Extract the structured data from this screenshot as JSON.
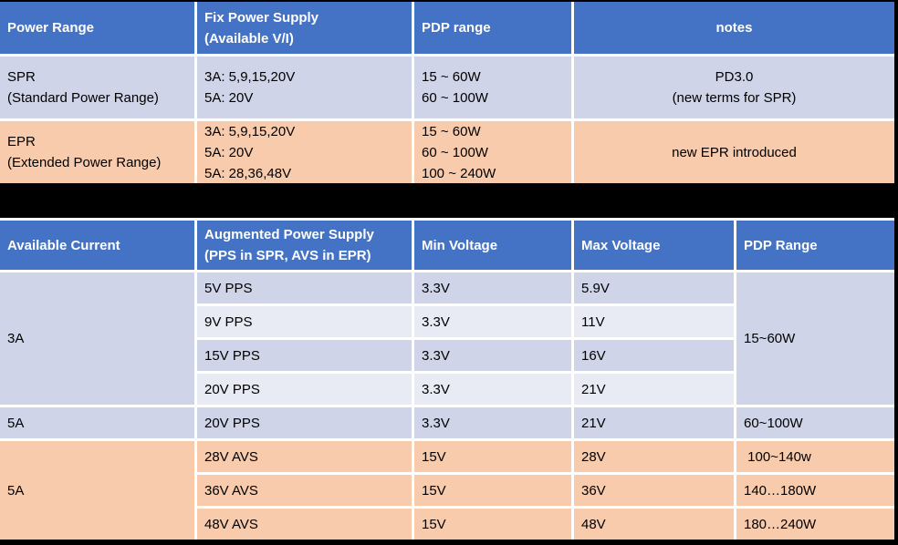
{
  "colors": {
    "header_blue": "#4472C4",
    "band_dark": "#CFD4E8",
    "band_light": "#E8EAF4",
    "peach": "#F8CBAD",
    "background": "#000000",
    "grid_white": "#FFFFFF"
  },
  "power_range_table": {
    "headers": {
      "power_range": "Power Range",
      "fix_power_supply": [
        "Fix Power Supply",
        "(Available V/I)"
      ],
      "pdp_range": "PDP range",
      "notes": "notes"
    },
    "spr_row": {
      "name": [
        "SPR",
        "(Standard Power Range)"
      ],
      "supply": [
        "3A: 5,9,15,20V",
        "5A: 20V"
      ],
      "pdp": [
        "15 ~ 60W",
        "60 ~ 100W"
      ],
      "notes": [
        "PD3.0",
        "(new terms for SPR)"
      ]
    },
    "epr_row": {
      "name": [
        "EPR",
        "(Extended Power Range)"
      ],
      "supply": [
        "3A: 5,9,15,20V",
        "5A: 20V",
        "5A: 28,36,48V"
      ],
      "pdp": [
        "15 ~ 60W",
        "60 ~ 100W",
        "100 ~ 240W"
      ],
      "notes": [
        "new EPR introduced"
      ]
    }
  },
  "augmented_table": {
    "headers": {
      "available_current": "Available Current",
      "augmented_power_supply": [
        "Augmented Power Supply",
        "(PPS in SPR, AVS in EPR)"
      ],
      "min_voltage": "Min Voltage",
      "max_voltage": "Max Voltage",
      "pdp_range": "PDP Range"
    },
    "current_3a": "3A",
    "pdp_15_60": "15~60W",
    "pps_rows": [
      {
        "supply": "5V PPS",
        "min": "3.3V",
        "max": "5.9V"
      },
      {
        "supply": "9V PPS",
        "min": "3.3V",
        "max": "11V"
      },
      {
        "supply": "15V PPS",
        "min": "3.3V",
        "max": "16V"
      },
      {
        "supply": "20V PPS",
        "min": "3.3V",
        "max": "21V"
      }
    ],
    "row_5a_pps": {
      "current": "5A",
      "supply": "20V PPS",
      "min": "3.3V",
      "max": "21V",
      "pdp": "60~100W"
    },
    "current_5a_avs": "5A",
    "avs_rows": [
      {
        "supply": "28V AVS",
        "min": "15V",
        "max": "28V",
        "pdp": " 100~140w"
      },
      {
        "supply": "36V AVS",
        "min": "15V",
        "max": "36V",
        "pdp": "140…180W"
      },
      {
        "supply": "48V AVS",
        "min": "15V",
        "max": "48V",
        "pdp": "180…240W"
      }
    ]
  }
}
